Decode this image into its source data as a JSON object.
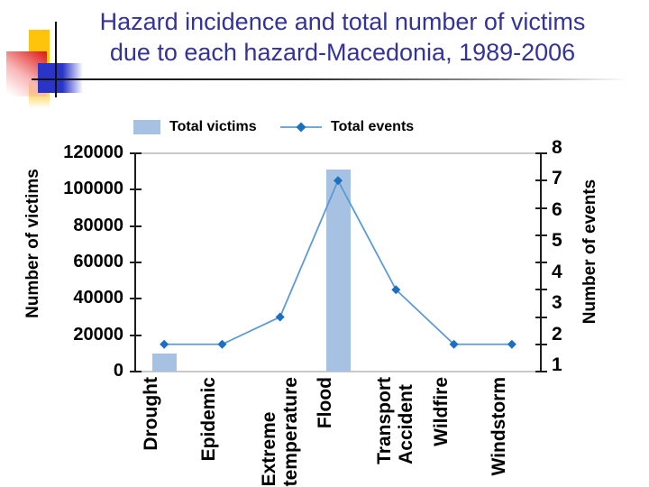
{
  "slide": {
    "title_line1": "Hazard incidence and total number of victims",
    "title_line2": "due to each hazard-Macedonia, 1989-2006"
  },
  "legend": {
    "victims_label": "Total victims",
    "events_label": "Total events"
  },
  "axes": {
    "left_title": "Number of victims",
    "right_title": "Number of events",
    "left_ticks": [
      "120000",
      "100000",
      "80000",
      "60000",
      "40000",
      "20000",
      "0"
    ],
    "right_ticks": [
      "8",
      "7",
      "6",
      "5",
      "4",
      "3",
      "2",
      "1"
    ],
    "category_label_lines": [
      [
        "Drought"
      ],
      [
        "Epidemic"
      ],
      [
        "Extreme",
        "temperature"
      ],
      [
        "Flood"
      ],
      [
        "Transport",
        "Accident"
      ],
      [
        "Wildfire"
      ],
      [
        "Windstorm"
      ]
    ]
  },
  "chart_data": {
    "type": "bar",
    "subtype": "bar+line dual axis",
    "title": "Hazard incidence and total number of victims due to each hazard-Macedonia, 1989-2006",
    "categories": [
      "Drought",
      "Epidemic",
      "Extreme temperature",
      "Flood",
      "Transport Accident",
      "Wildfire",
      "Windstorm"
    ],
    "series": [
      {
        "name": "Total victims",
        "type": "bar",
        "axis": "left",
        "values": [
          10000,
          0,
          0,
          111000,
          0,
          0,
          0
        ]
      },
      {
        "name": "Total events",
        "type": "line",
        "axis": "right",
        "values": [
          1,
          1,
          2,
          7,
          3,
          1,
          1
        ]
      }
    ],
    "left_axis": {
      "label": "Number of victims",
      "range": [
        0,
        120000
      ],
      "tick_step": 20000
    },
    "right_axis": {
      "label": "Number of events",
      "range": [
        0,
        8
      ],
      "tick_step": 1,
      "visible_labels": [
        "1",
        "2",
        "3",
        "4",
        "5",
        "6",
        "7",
        "8"
      ]
    },
    "grid": false,
    "legend_position": "top"
  },
  "colors": {
    "bar_fill": "#a6c1e2",
    "line": "#5b9bd5",
    "marker": "#1d6fc2",
    "title_text": "#333399",
    "axis_text": "#000000",
    "plot_border": "#c9c9c9",
    "axis_line": "#1c1c1c",
    "deco_yellow": "#ffc40a",
    "deco_red": "#e02424",
    "deco_blue": "#2a35c8"
  }
}
